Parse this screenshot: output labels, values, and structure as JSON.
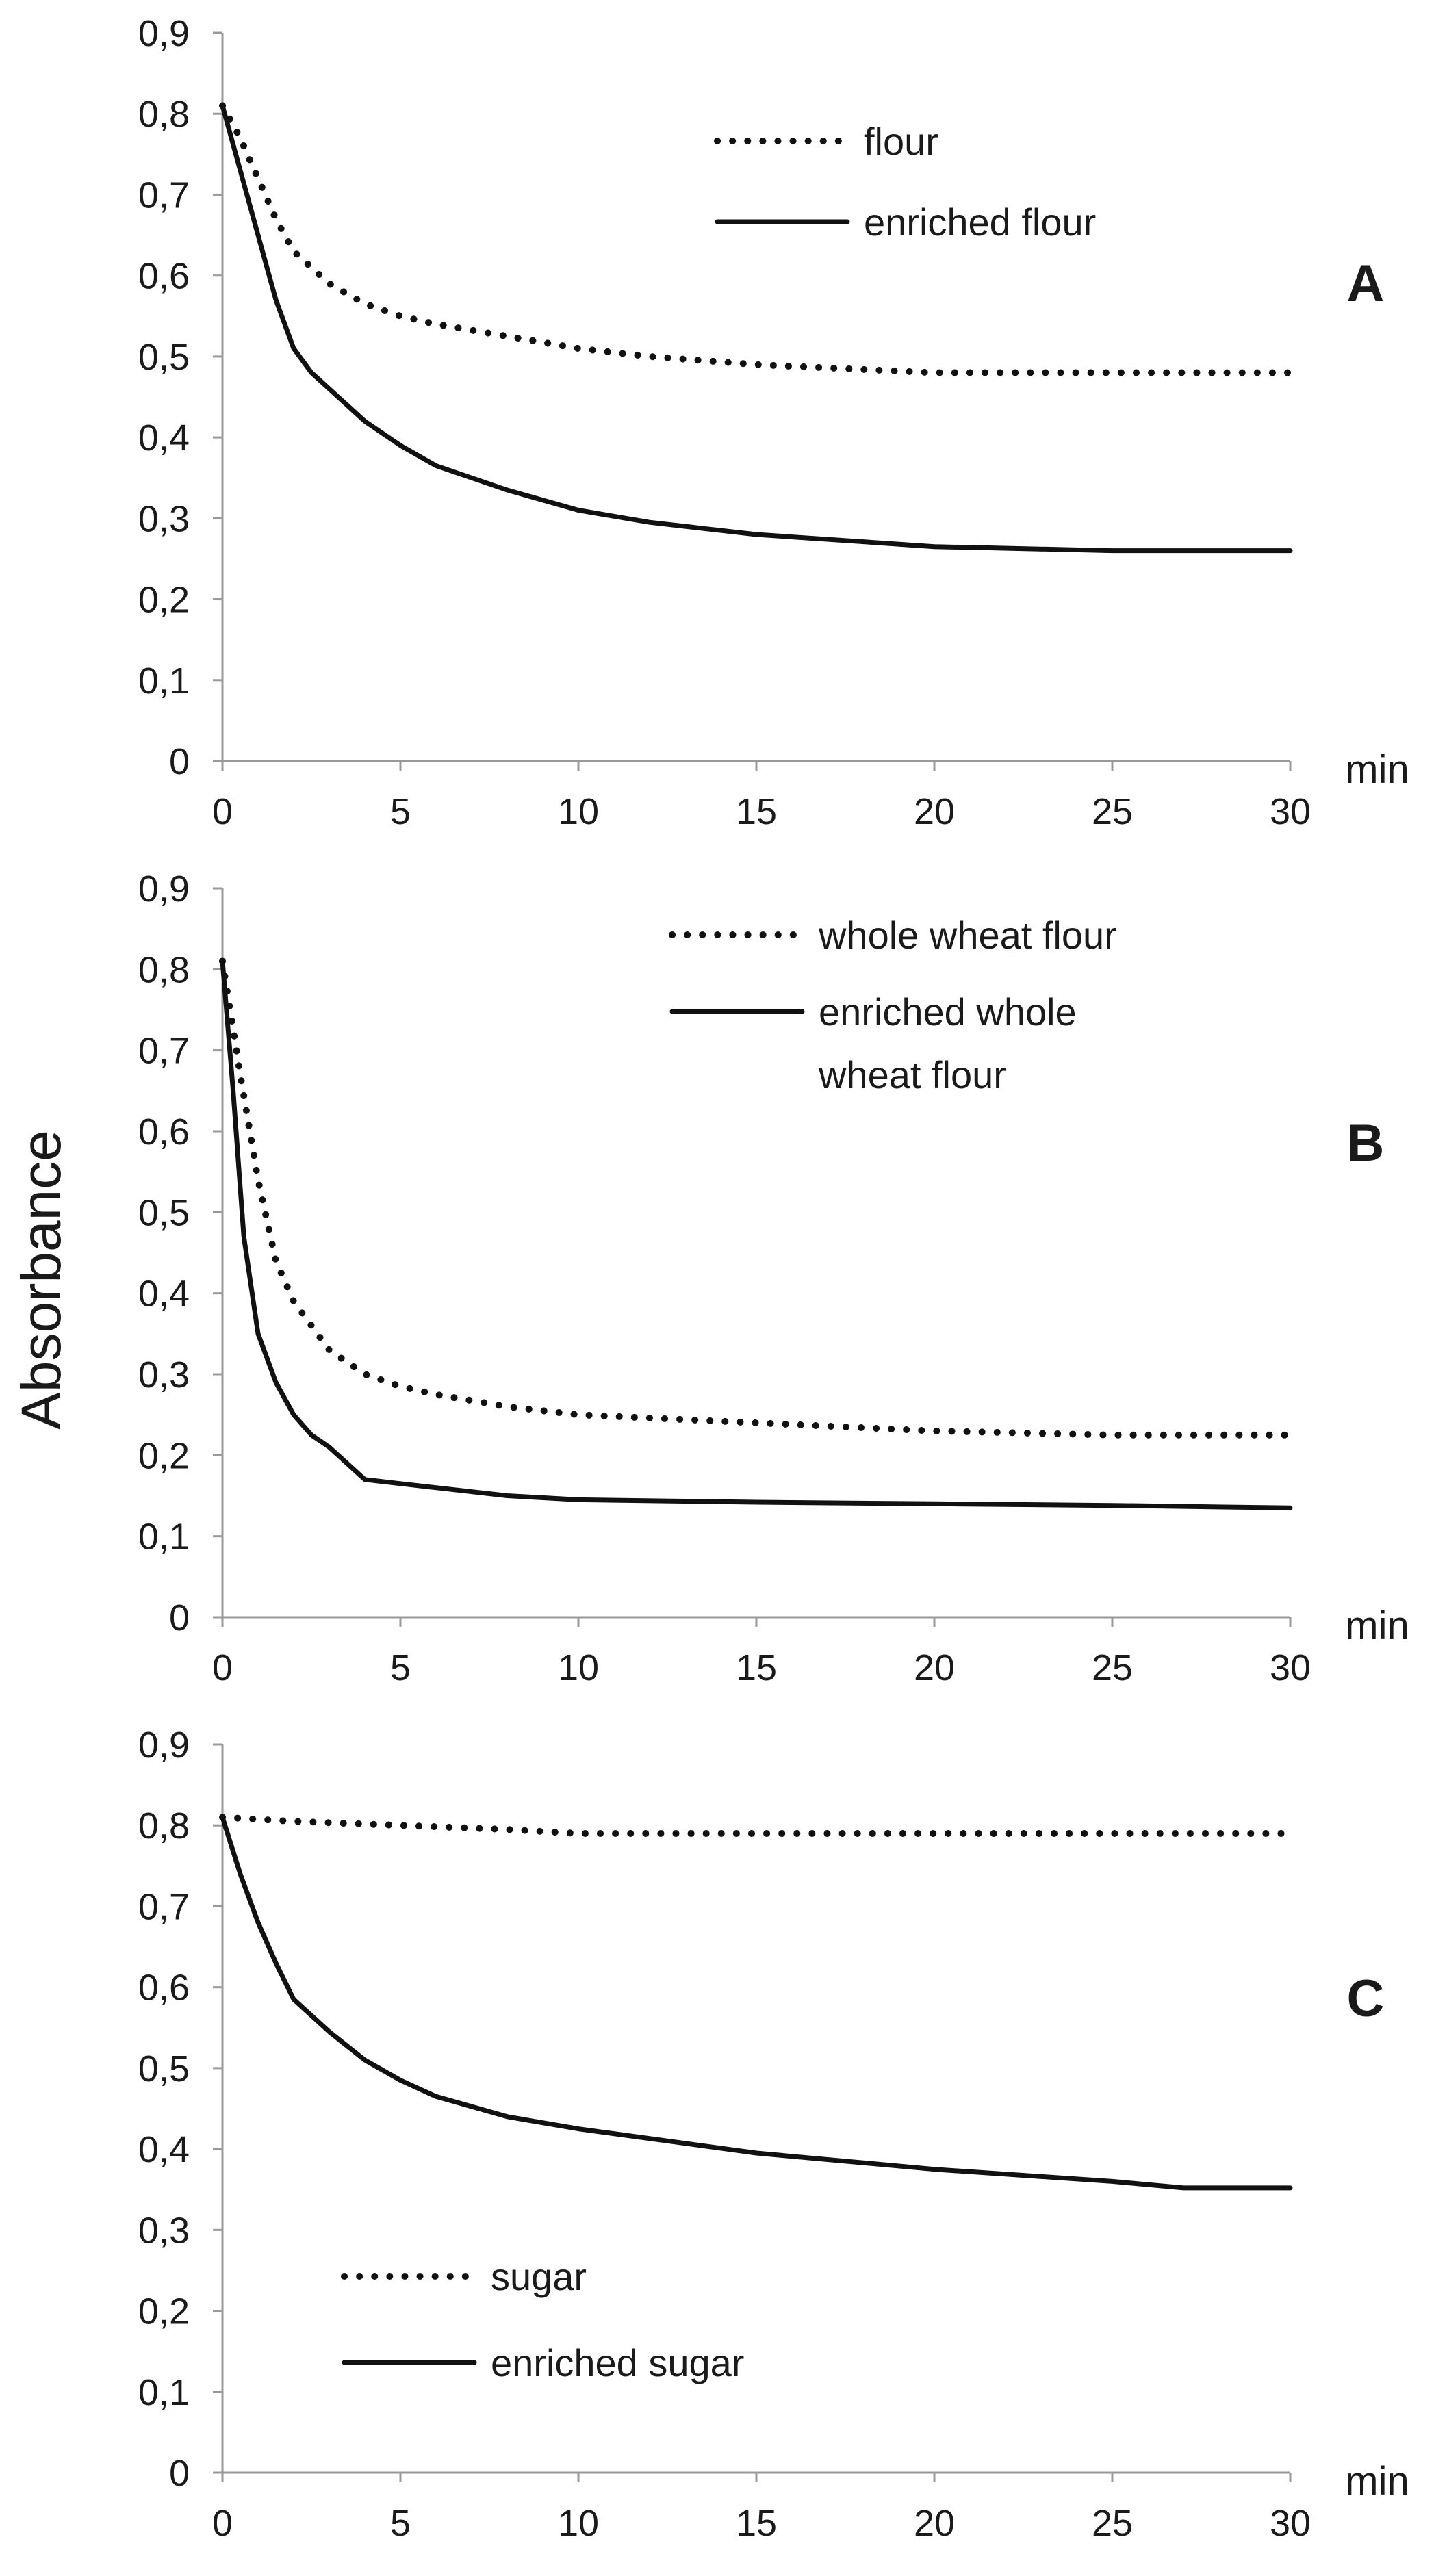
{
  "chart_data": [
    {
      "type": "line",
      "panel_label": "A",
      "ylabel": "Absorbance",
      "xlabel": "min",
      "xlim": [
        0,
        30
      ],
      "ylim": [
        0,
        0.9
      ],
      "x_ticks": [
        "0",
        "5",
        "10",
        "15",
        "20",
        "25",
        "30"
      ],
      "y_ticks": [
        "0",
        "0,1",
        "0,2",
        "0,3",
        "0,4",
        "0,5",
        "0,6",
        "0,7",
        "0,8",
        "0,9"
      ],
      "legend_position": "top-right",
      "series": [
        {
          "name": "flour",
          "style": "dotted",
          "x": [
            0,
            0.5,
            1,
            1.5,
            2,
            3,
            4,
            5,
            6,
            8,
            10,
            12,
            15,
            20,
            25,
            30
          ],
          "y": [
            0.81,
            0.77,
            0.72,
            0.67,
            0.63,
            0.59,
            0.565,
            0.55,
            0.54,
            0.525,
            0.51,
            0.5,
            0.49,
            0.48,
            0.48,
            0.48
          ]
        },
        {
          "name": "enriched flour",
          "style": "solid",
          "x": [
            0,
            0.5,
            1,
            1.5,
            2,
            2.5,
            3,
            4,
            5,
            6,
            8,
            10,
            12,
            15,
            20,
            25,
            30
          ],
          "y": [
            0.81,
            0.73,
            0.65,
            0.57,
            0.51,
            0.48,
            0.46,
            0.42,
            0.39,
            0.365,
            0.335,
            0.31,
            0.295,
            0.28,
            0.265,
            0.26,
            0.26
          ]
        }
      ]
    },
    {
      "type": "line",
      "panel_label": "B",
      "ylabel": "Absorbance",
      "xlabel": "min",
      "xlim": [
        0,
        30
      ],
      "ylim": [
        0,
        0.9
      ],
      "x_ticks": [
        "0",
        "5",
        "10",
        "15",
        "20",
        "25",
        "30"
      ],
      "y_ticks": [
        "0",
        "0,1",
        "0,2",
        "0,3",
        "0,4",
        "0,5",
        "0,6",
        "0,7",
        "0,8",
        "0,9"
      ],
      "legend_position": "top-right",
      "series": [
        {
          "name": "whole wheat flour",
          "style": "dotted",
          "x": [
            0,
            0.5,
            1,
            1.5,
            2,
            3,
            4,
            5,
            6,
            8,
            10,
            15,
            20,
            25,
            30
          ],
          "y": [
            0.81,
            0.67,
            0.54,
            0.44,
            0.39,
            0.33,
            0.3,
            0.285,
            0.275,
            0.26,
            0.25,
            0.24,
            0.23,
            0.225,
            0.225
          ]
        },
        {
          "name": "enriched whole wheat flour",
          "style": "solid",
          "x": [
            0,
            0.3,
            0.6,
            1,
            1.5,
            2,
            2.5,
            3,
            3.5,
            4,
            5,
            6,
            8,
            10,
            15,
            20,
            25,
            30
          ],
          "y": [
            0.81,
            0.65,
            0.47,
            0.35,
            0.29,
            0.25,
            0.225,
            0.21,
            0.19,
            0.17,
            0.165,
            0.16,
            0.15,
            0.145,
            0.142,
            0.14,
            0.138,
            0.135
          ]
        }
      ]
    },
    {
      "type": "line",
      "panel_label": "C",
      "ylabel": "Absorbance",
      "xlabel": "min",
      "xlim": [
        0,
        30
      ],
      "ylim": [
        0,
        0.9
      ],
      "x_ticks": [
        "0",
        "5",
        "10",
        "15",
        "20",
        "25",
        "30"
      ],
      "y_ticks": [
        "0",
        "0,1",
        "0,2",
        "0,3",
        "0,4",
        "0,5",
        "0,6",
        "0,7",
        "0,8",
        "0,9"
      ],
      "legend_position": "bottom-left",
      "series": [
        {
          "name": "sugar",
          "style": "dotted",
          "x": [
            0,
            2,
            5,
            8,
            10,
            15,
            20,
            25,
            30
          ],
          "y": [
            0.81,
            0.805,
            0.8,
            0.795,
            0.79,
            0.79,
            0.79,
            0.79,
            0.79
          ]
        },
        {
          "name": "enriched sugar",
          "style": "solid",
          "x": [
            0,
            0.5,
            1,
            1.5,
            2,
            3,
            4,
            5,
            6,
            8,
            10,
            15,
            20,
            25,
            27,
            30
          ],
          "y": [
            0.81,
            0.74,
            0.68,
            0.63,
            0.585,
            0.545,
            0.51,
            0.485,
            0.465,
            0.44,
            0.425,
            0.395,
            0.375,
            0.36,
            0.352,
            0.352
          ]
        }
      ]
    }
  ]
}
